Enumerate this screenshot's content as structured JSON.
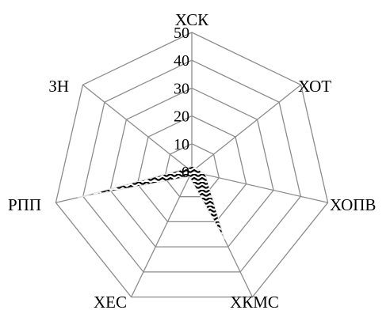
{
  "chart_data": {
    "type": "radar",
    "categories": [
      "ХСК",
      "ХОТ",
      "ХОПВ",
      "ХКМС",
      "ХЕС",
      "РПП",
      "ЗН"
    ],
    "series": [
      {
        "values": [
          2,
          2,
          5,
          27,
          2,
          42,
          2
        ],
        "fill_pattern": "zigzag-black-white"
      }
    ],
    "rlim": [
      0,
      50
    ],
    "ticks": [
      0,
      10,
      20,
      30,
      40,
      50
    ],
    "grid": true,
    "legend": false,
    "colors": {
      "grid": "#8c8c8c",
      "text": "#000000",
      "fill_dark": "#000000",
      "fill_light": "#ffffff"
    }
  }
}
